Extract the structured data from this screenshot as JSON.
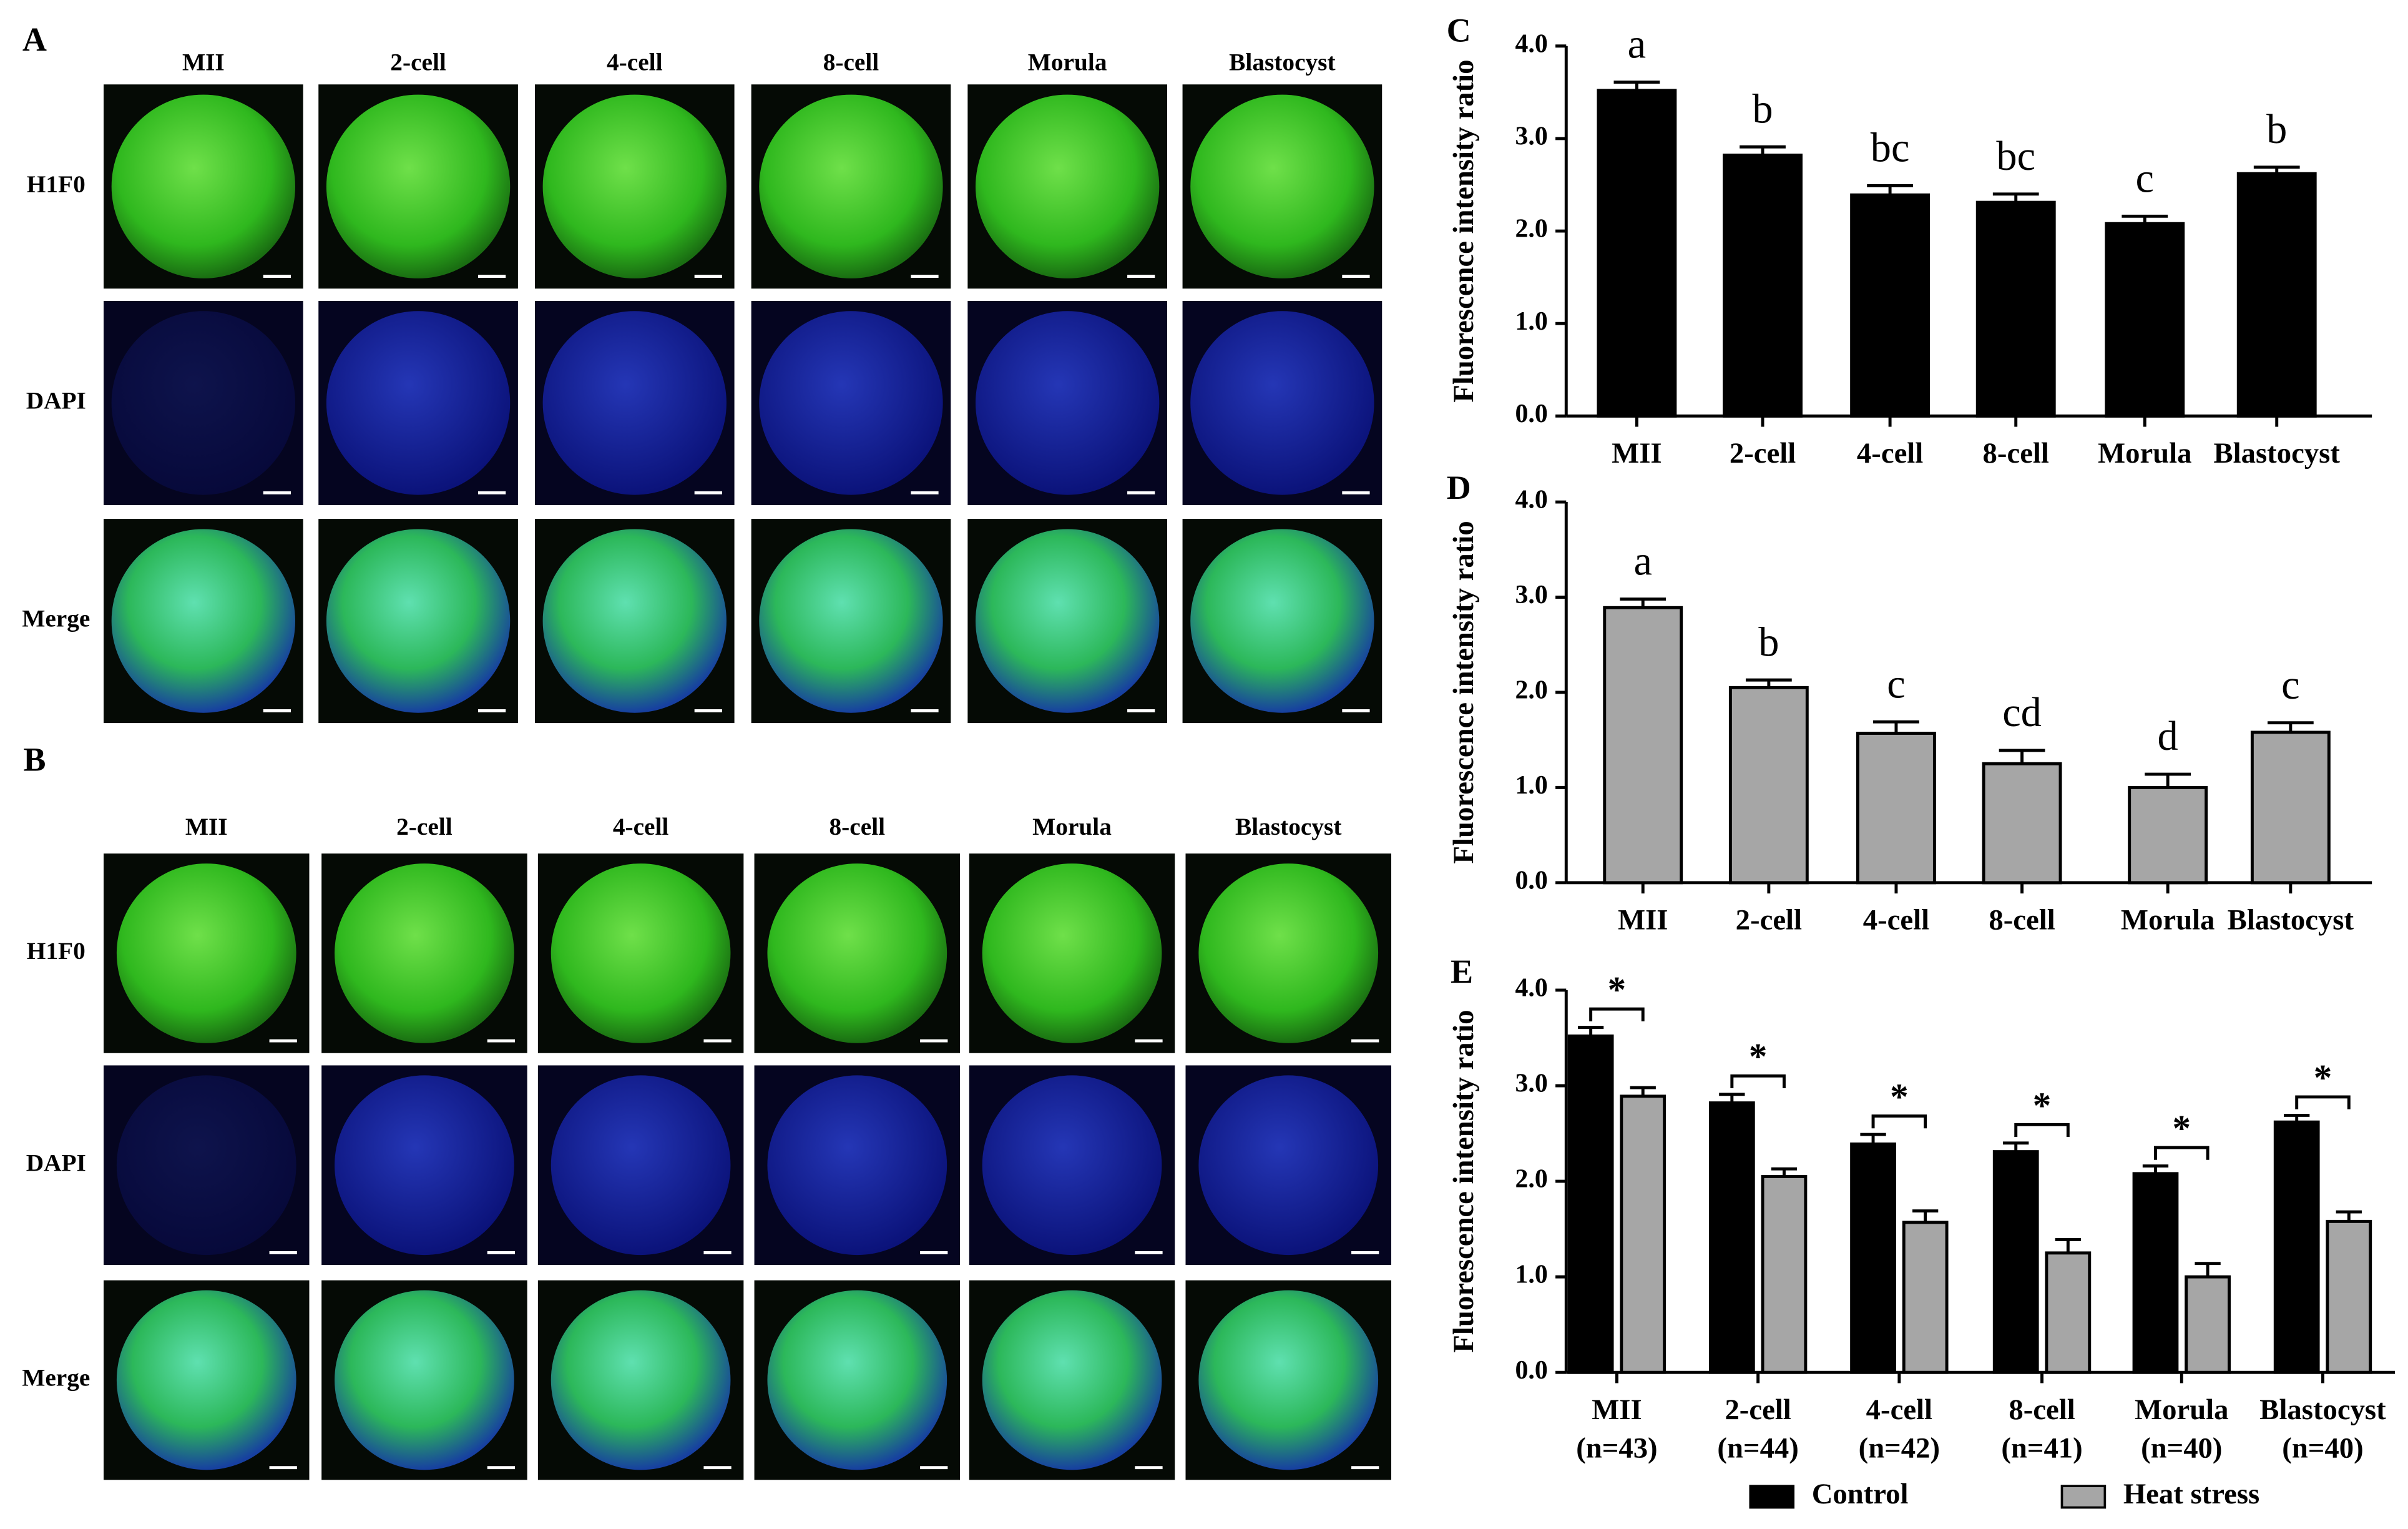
{
  "image_panels": [
    {
      "label": "A",
      "columns": [
        "MII",
        "2-cell",
        "4-cell",
        "8-cell",
        "Morula",
        "Blastocyst"
      ],
      "rows": [
        "H1F0",
        "DAPI",
        "Merge"
      ]
    },
    {
      "label": "B",
      "columns": [
        "MII",
        "2-cell",
        "4-cell",
        "8-cell",
        "Morula",
        "Blastocyst"
      ],
      "rows": [
        "H1F0",
        "DAPI",
        "Merge"
      ]
    }
  ],
  "chart_data": [
    {
      "type": "bar",
      "panel_label": "C",
      "ylabel": "Fluorescence intensity ratio",
      "categories": [
        "MII",
        "2-cell",
        "4-cell",
        "8-cell",
        "Morula",
        "Blastocyst"
      ],
      "series": [
        {
          "color": "#000000",
          "values": [
            3.52,
            2.82,
            2.39,
            2.31,
            2.08,
            2.62
          ],
          "errors": [
            0.09,
            0.09,
            0.1,
            0.09,
            0.08,
            0.07
          ]
        }
      ],
      "annotations": [
        "a",
        "b",
        "bc",
        "bc",
        "c",
        "b"
      ],
      "ylim": [
        0,
        4
      ],
      "yticks": [
        {
          "value": 0,
          "label": "0.0"
        },
        {
          "value": 1,
          "label": "1.0"
        },
        {
          "value": 2,
          "label": "2.0"
        },
        {
          "value": 3,
          "label": "3.0"
        },
        {
          "value": 4,
          "label": "4.0"
        }
      ]
    },
    {
      "type": "bar",
      "panel_label": "D",
      "ylabel": "Fluorescence intensity ratio",
      "categories": [
        "MII",
        "2-cell",
        "4-cell",
        "8-cell",
        "Morula",
        "Blastocyst"
      ],
      "series": [
        {
          "color": "#a6a6a6",
          "values": [
            2.89,
            2.05,
            1.57,
            1.25,
            1.0,
            1.58
          ],
          "errors": [
            0.09,
            0.08,
            0.12,
            0.14,
            0.14,
            0.1
          ]
        }
      ],
      "annotations": [
        "a",
        "b",
        "c",
        "cd",
        "d",
        "c"
      ],
      "ylim": [
        0,
        4
      ],
      "yticks": [
        {
          "value": 0,
          "label": "0.0"
        },
        {
          "value": 1,
          "label": "1.0"
        },
        {
          "value": 2,
          "label": "2.0"
        },
        {
          "value": 3,
          "label": "3.0"
        },
        {
          "value": 4,
          "label": "4.0"
        }
      ]
    },
    {
      "type": "grouped_bar",
      "panel_label": "E",
      "ylabel": "Fluorescence intensity ratio",
      "categories": [
        "MII",
        "2-cell",
        "4-cell",
        "8-cell",
        "Morula",
        "Blastocyst"
      ],
      "sample_sizes": [
        "(n=43)",
        "(n=44)",
        "(n=42)",
        "(n=41)",
        "(n=40)",
        "(n=40)"
      ],
      "series": [
        {
          "name": "Control",
          "color": "#000000",
          "values": [
            3.52,
            2.82,
            2.39,
            2.31,
            2.08,
            2.62
          ],
          "errors": [
            0.09,
            0.09,
            0.1,
            0.09,
            0.08,
            0.07
          ]
        },
        {
          "name": "Heat stress",
          "color": "#a6a6a6",
          "values": [
            2.89,
            2.05,
            1.57,
            1.25,
            1.0,
            1.58
          ],
          "errors": [
            0.09,
            0.08,
            0.12,
            0.14,
            0.14,
            0.1
          ]
        }
      ],
      "annotations": [
        "*",
        "*",
        "*",
        "*",
        "*",
        "*"
      ],
      "ylim": [
        0,
        4
      ],
      "yticks": [
        {
          "value": 0,
          "label": "0.0"
        },
        {
          "value": 1,
          "label": "1.0"
        },
        {
          "value": 2,
          "label": "2.0"
        },
        {
          "value": 3,
          "label": "3.0"
        },
        {
          "value": 4,
          "label": "4.0"
        }
      ],
      "legend": "bottom"
    }
  ]
}
